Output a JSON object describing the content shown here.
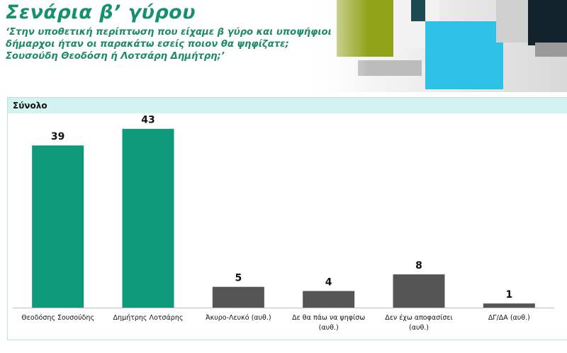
{
  "header": {
    "title": "Σενάρια β’ γύρου",
    "subtitle_lines": [
      "‘Στην υποθετική περίπτωση που είχαμε β γύρο και υποψήφιοι",
      "δήμαρχοι ήταν οι παρακάτω εσείς ποιον θα ψηφίζατε;",
      "Σουσούδη Θεοδόση ή Λοτσάρη Δημήτρη;’"
    ]
  },
  "panel": {
    "label": "Σύνολο"
  },
  "colors": {
    "candidate": "#0e9a7a",
    "other": "#555555",
    "title": "#17906f"
  },
  "chart_data": {
    "type": "bar",
    "categories": [
      [
        "Θεοδόσης Σουσούδης"
      ],
      [
        "Δημήτρης Λοτσάρης"
      ],
      [
        "Άκυρο-Λευκό (αυθ.)"
      ],
      [
        "Δε θα πάω να ψηφίσω",
        "(αυθ.)"
      ],
      [
        "Δεν έχω αποφασίσει",
        "(αυθ.)"
      ],
      [
        "ΔΓ/ΔΑ (αυθ.)"
      ]
    ],
    "values": [
      39,
      43,
      5,
      4,
      8,
      1
    ],
    "data_labels": [
      "39",
      "43",
      "5",
      "4",
      "8",
      "1"
    ],
    "bar_colors": [
      "#0e9a7a",
      "#0e9a7a",
      "#555555",
      "#555555",
      "#555555",
      "#555555"
    ],
    "ylim": [
      0,
      45
    ],
    "grid": false,
    "legend": "none"
  }
}
